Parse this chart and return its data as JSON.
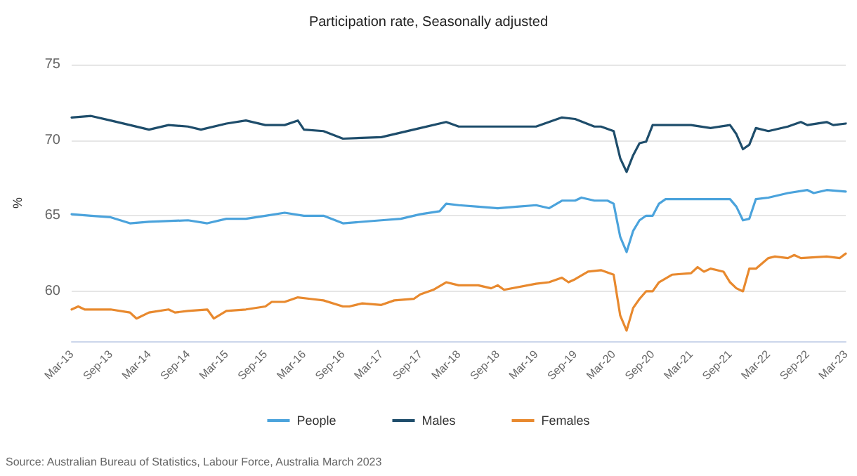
{
  "chart_data": {
    "type": "line",
    "title": "Participation rate, Seasonally adjusted",
    "ylabel": "%",
    "xlim": [
      "2013-03",
      "2023-03"
    ],
    "ylim": [
      56.7,
      75
    ],
    "yticks": [
      60,
      65,
      70,
      75
    ],
    "xticks": [
      {
        "value": "2013-03",
        "label": "Mar-13"
      },
      {
        "value": "2013-09",
        "label": "Sep-13"
      },
      {
        "value": "2014-03",
        "label": "Mar-14"
      },
      {
        "value": "2014-09",
        "label": "Sep-14"
      },
      {
        "value": "2015-03",
        "label": "Mar-15"
      },
      {
        "value": "2015-09",
        "label": "Sep-15"
      },
      {
        "value": "2016-03",
        "label": "Mar-16"
      },
      {
        "value": "2016-09",
        "label": "Sep-16"
      },
      {
        "value": "2017-03",
        "label": "Mar-17"
      },
      {
        "value": "2017-09",
        "label": "Sep-17"
      },
      {
        "value": "2018-03",
        "label": "Mar-18"
      },
      {
        "value": "2018-09",
        "label": "Sep-18"
      },
      {
        "value": "2019-03",
        "label": "Mar-19"
      },
      {
        "value": "2019-09",
        "label": "Sep-19"
      },
      {
        "value": "2020-03",
        "label": "Mar-20"
      },
      {
        "value": "2020-09",
        "label": "Sep-20"
      },
      {
        "value": "2021-03",
        "label": "Mar-21"
      },
      {
        "value": "2021-09",
        "label": "Sep-21"
      },
      {
        "value": "2022-03",
        "label": "Mar-22"
      },
      {
        "value": "2022-09",
        "label": "Sep-22"
      },
      {
        "value": "2023-03",
        "label": "Mar-23"
      }
    ],
    "grid": "y",
    "legend": "bottom",
    "marker": "none",
    "line_style": "solid",
    "annotations": [
      "Source: Australian Bureau of Statistics, Labour Force, Australia March 2023"
    ],
    "series": [
      {
        "name": "People",
        "color": "#4ba3dc",
        "x": [
          "2013-03",
          "2013-06",
          "2013-09",
          "2013-12",
          "2014-03",
          "2014-09",
          "2014-12",
          "2015-03",
          "2015-06",
          "2015-09",
          "2015-12",
          "2016-03",
          "2016-06",
          "2016-09",
          "2017-03",
          "2017-06",
          "2017-09",
          "2017-12",
          "2018-01",
          "2018-03",
          "2018-06",
          "2018-09",
          "2018-12",
          "2019-03",
          "2019-05",
          "2019-07",
          "2019-09",
          "2019-10",
          "2019-12",
          "2020-02",
          "2020-03",
          "2020-04",
          "2020-05",
          "2020-06",
          "2020-07",
          "2020-08",
          "2020-09",
          "2020-10",
          "2020-11",
          "2021-03",
          "2021-06",
          "2021-09",
          "2021-10",
          "2021-11",
          "2021-12",
          "2022-01",
          "2022-03",
          "2022-06",
          "2022-09",
          "2022-10",
          "2022-12",
          "2023-03"
        ],
        "values": [
          65.1,
          65.0,
          64.9,
          64.5,
          64.6,
          64.7,
          64.5,
          64.8,
          64.8,
          65.0,
          65.2,
          65.0,
          65.0,
          64.5,
          64.7,
          64.8,
          65.1,
          65.3,
          65.8,
          65.7,
          65.6,
          65.5,
          65.6,
          65.7,
          65.5,
          66.0,
          66.0,
          66.2,
          66.0,
          66.0,
          65.8,
          63.6,
          62.6,
          64.0,
          64.7,
          65.0,
          65.0,
          65.8,
          66.1,
          66.1,
          66.1,
          66.1,
          65.6,
          64.7,
          64.8,
          66.1,
          66.2,
          66.5,
          66.7,
          66.5,
          66.7,
          66.6
        ]
      },
      {
        "name": "Males",
        "color": "#1e4d6b",
        "x": [
          "2013-03",
          "2013-06",
          "2013-09",
          "2013-12",
          "2014-03",
          "2014-06",
          "2014-09",
          "2014-11",
          "2015-03",
          "2015-06",
          "2015-09",
          "2015-12",
          "2016-02",
          "2016-03",
          "2016-06",
          "2016-09",
          "2017-03",
          "2017-09",
          "2018-01",
          "2018-03",
          "2018-09",
          "2019-03",
          "2019-07",
          "2019-09",
          "2019-12",
          "2020-01",
          "2020-03",
          "2020-04",
          "2020-05",
          "2020-06",
          "2020-07",
          "2020-08",
          "2020-09",
          "2020-10",
          "2021-03",
          "2021-06",
          "2021-09",
          "2021-10",
          "2021-11",
          "2021-12",
          "2022-01",
          "2022-03",
          "2022-06",
          "2022-08",
          "2022-09",
          "2022-12",
          "2023-01",
          "2023-03"
        ],
        "values": [
          71.5,
          71.6,
          71.3,
          71.0,
          70.7,
          71.0,
          70.9,
          70.7,
          71.1,
          71.3,
          71.0,
          71.0,
          71.3,
          70.7,
          70.6,
          70.1,
          70.2,
          70.8,
          71.2,
          70.9,
          70.9,
          70.9,
          71.5,
          71.4,
          70.9,
          70.9,
          70.6,
          68.8,
          67.9,
          69.0,
          69.8,
          69.9,
          71.0,
          71.0,
          71.0,
          70.8,
          71.0,
          70.4,
          69.4,
          69.7,
          70.8,
          70.6,
          70.9,
          71.2,
          71.0,
          71.2,
          71.0,
          71.1
        ]
      },
      {
        "name": "Females",
        "color": "#e8892e",
        "x": [
          "2013-03",
          "2013-04",
          "2013-05",
          "2013-09",
          "2013-12",
          "2014-01",
          "2014-03",
          "2014-06",
          "2014-07",
          "2014-09",
          "2014-12",
          "2015-01",
          "2015-03",
          "2015-06",
          "2015-09",
          "2015-10",
          "2015-12",
          "2016-02",
          "2016-04",
          "2016-06",
          "2016-09",
          "2016-10",
          "2016-12",
          "2017-03",
          "2017-05",
          "2017-08",
          "2017-09",
          "2017-11",
          "2018-01",
          "2018-03",
          "2018-06",
          "2018-08",
          "2018-09",
          "2018-10",
          "2019-03",
          "2019-05",
          "2019-07",
          "2019-08",
          "2019-09",
          "2019-11",
          "2020-01",
          "2020-03",
          "2020-04",
          "2020-05",
          "2020-06",
          "2020-07",
          "2020-08",
          "2020-09",
          "2020-10",
          "2020-12",
          "2021-03",
          "2021-04",
          "2021-05",
          "2021-06",
          "2021-08",
          "2021-09",
          "2021-10",
          "2021-11",
          "2021-12",
          "2022-01",
          "2022-03",
          "2022-04",
          "2022-06",
          "2022-07",
          "2022-08",
          "2022-12",
          "2023-02",
          "2023-03"
        ],
        "values": [
          58.8,
          59.0,
          58.8,
          58.8,
          58.6,
          58.2,
          58.6,
          58.8,
          58.6,
          58.7,
          58.8,
          58.2,
          58.7,
          58.8,
          59.0,
          59.3,
          59.3,
          59.6,
          59.5,
          59.4,
          59.0,
          59.0,
          59.2,
          59.1,
          59.4,
          59.5,
          59.8,
          60.1,
          60.6,
          60.4,
          60.4,
          60.2,
          60.4,
          60.1,
          60.5,
          60.6,
          60.9,
          60.6,
          60.8,
          61.3,
          61.4,
          61.1,
          58.4,
          57.4,
          58.9,
          59.5,
          60.0,
          60.0,
          60.6,
          61.1,
          61.2,
          61.6,
          61.3,
          61.5,
          61.3,
          60.6,
          60.2,
          60.0,
          61.5,
          61.5,
          62.2,
          62.3,
          62.2,
          62.4,
          62.2,
          62.3,
          62.2,
          62.5
        ]
      }
    ]
  }
}
